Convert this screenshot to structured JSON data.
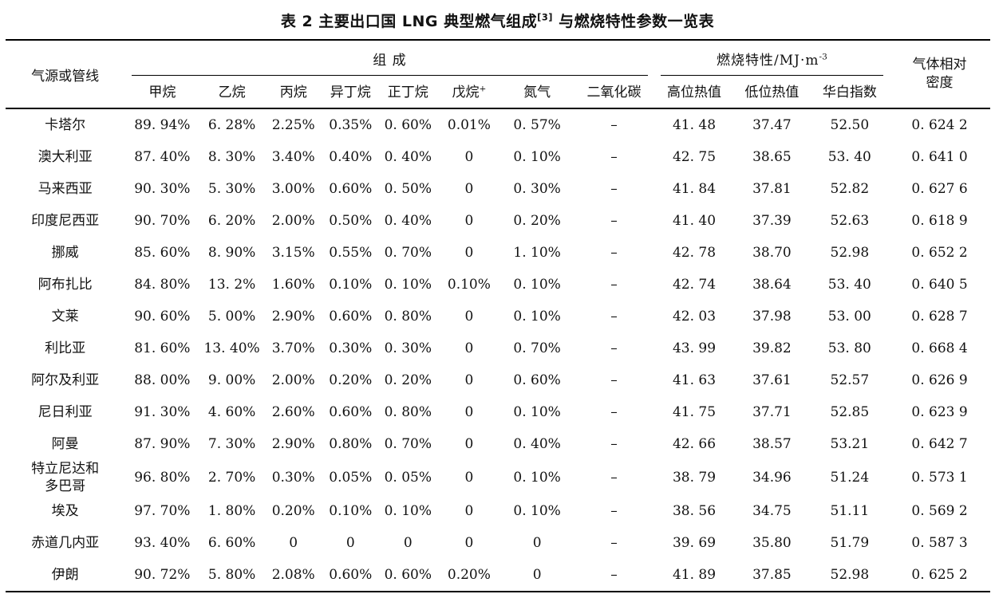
{
  "table": {
    "title": {
      "prefix": "表 2  主要出口国 LNG 典型燃气组成",
      "sup": "[3]",
      "suffix": " 与燃烧特性参数一览表"
    },
    "header": {
      "source_col": "气源或管线",
      "composition_group": "组  成",
      "combustion_group": {
        "text": "燃烧特性/MJ·m",
        "sup": "-3"
      },
      "density_col": {
        "line1": "气体相对",
        "line2": "密度"
      },
      "composition_cols": [
        {
          "key": "methane",
          "text": "甲烷",
          "sup": ""
        },
        {
          "key": "ethane",
          "text": "乙烷",
          "sup": ""
        },
        {
          "key": "propane",
          "text": "丙烷",
          "sup": ""
        },
        {
          "key": "isobutane",
          "text": "异丁烷",
          "sup": ""
        },
        {
          "key": "n-butane",
          "text": "正丁烷",
          "sup": ""
        },
        {
          "key": "pentane-plus",
          "text": "戊烷",
          "sup": "+"
        },
        {
          "key": "nitrogen",
          "text": "氮气",
          "sup": ""
        },
        {
          "key": "co2",
          "text": "二氧化碳",
          "sup": ""
        }
      ],
      "combustion_cols": [
        {
          "key": "hhv",
          "text": "高位热值"
        },
        {
          "key": "lhv",
          "text": "低位热值"
        },
        {
          "key": "wobbe",
          "text": "华白指数"
        }
      ]
    },
    "rows": [
      [
        "卡塔尔",
        "89. 94%",
        "6. 28%",
        "2.25%",
        "0.35%",
        "0. 60%",
        "0.01%",
        "0. 57%",
        "–",
        "41. 48",
        "37.47",
        "52.50",
        "0. 624 2"
      ],
      [
        "澳大利亚",
        "87. 40%",
        "8. 30%",
        "3.40%",
        "0.40%",
        "0. 40%",
        "0",
        "0. 10%",
        "–",
        "42. 75",
        "38.65",
        "53. 40",
        "0. 641 0"
      ],
      [
        "马来西亚",
        "90. 30%",
        "5. 30%",
        "3.00%",
        "0.60%",
        "0. 50%",
        "0",
        "0. 30%",
        "–",
        "41. 84",
        "37.81",
        "52.82",
        "0. 627 6"
      ],
      [
        "印度尼西亚",
        "90. 70%",
        "6. 20%",
        "2.00%",
        "0.50%",
        "0. 40%",
        "0",
        "0. 20%",
        "–",
        "41. 40",
        "37.39",
        "52.63",
        "0. 618 9"
      ],
      [
        "挪威",
        "85. 60%",
        "8. 90%",
        "3.15%",
        "0.55%",
        "0. 70%",
        "0",
        "1. 10%",
        "–",
        "42. 78",
        "38.70",
        "52.98",
        "0. 652 2"
      ],
      [
        "阿布扎比",
        "84. 80%",
        "13. 2%",
        "1.60%",
        "0.10%",
        "0. 10%",
        "0.10%",
        "0. 10%",
        "–",
        "42. 74",
        "38.64",
        "53. 40",
        "0. 640 5"
      ],
      [
        "文莱",
        "90. 60%",
        "5. 00%",
        "2.90%",
        "0.60%",
        "0. 80%",
        "0",
        "0. 10%",
        "–",
        "42. 03",
        "37.98",
        "53. 00",
        "0. 628 7"
      ],
      [
        "利比亚",
        "81. 60%",
        "13. 40%",
        "3.70%",
        "0.30%",
        "0. 30%",
        "0",
        "0. 70%",
        "–",
        "43. 99",
        "39.82",
        "53. 80",
        "0. 668 4"
      ],
      [
        "阿尔及利亚",
        "88. 00%",
        "9. 00%",
        "2.00%",
        "0.20%",
        "0. 20%",
        "0",
        "0. 60%",
        "–",
        "41. 63",
        "37.61",
        "52.57",
        "0. 626 9"
      ],
      [
        "尼日利亚",
        "91. 30%",
        "4. 60%",
        "2.60%",
        "0.60%",
        "0. 80%",
        "0",
        "0. 10%",
        "–",
        "41. 75",
        "37.71",
        "52.85",
        "0. 623 9"
      ],
      [
        "阿曼",
        "87. 90%",
        "7. 30%",
        "2.90%",
        "0.80%",
        "0. 70%",
        "0",
        "0. 40%",
        "–",
        "42. 66",
        "38.57",
        "53.21",
        "0. 642 7"
      ],
      [
        "特立尼达和多巴哥",
        "96. 80%",
        "2. 70%",
        "0.30%",
        "0.05%",
        "0. 05%",
        "0",
        "0. 10%",
        "–",
        "38. 79",
        "34.96",
        "51.24",
        "0. 573 1"
      ],
      [
        "埃及",
        "97. 70%",
        "1. 80%",
        "0.20%",
        "0.10%",
        "0. 10%",
        "0",
        "0. 10%",
        "–",
        "38. 56",
        "34.75",
        "51.11",
        "0. 569 2"
      ],
      [
        "赤道几内亚",
        "93. 40%",
        "6. 60%",
        "0",
        "0",
        "0",
        "0",
        "0",
        "–",
        "39. 69",
        "35.80",
        "51.79",
        "0. 587 3"
      ],
      [
        "伊朗",
        "90. 72%",
        "5. 80%",
        "2.08%",
        "0.60%",
        "0. 60%",
        "0.20%",
        "0",
        "–",
        "41. 89",
        "37.85",
        "52.98",
        "0. 625 2"
      ]
    ]
  }
}
